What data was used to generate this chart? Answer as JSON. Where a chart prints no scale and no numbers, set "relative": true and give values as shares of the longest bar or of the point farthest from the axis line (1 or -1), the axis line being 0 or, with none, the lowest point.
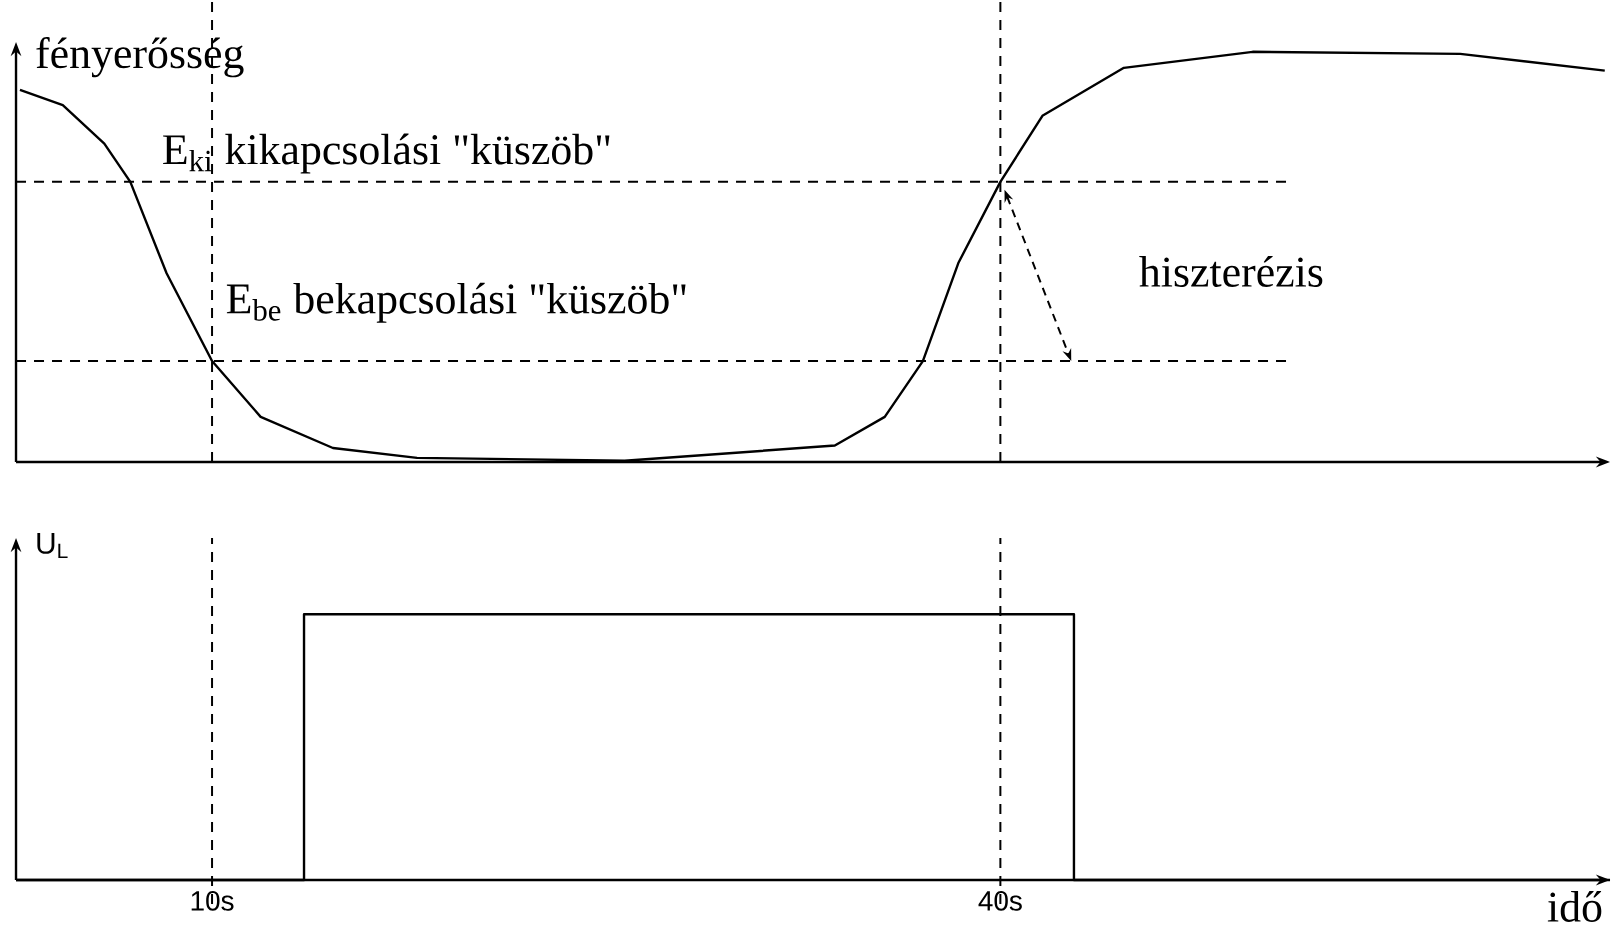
{
  "chart_data": [
    {
      "type": "line",
      "ylabel": "fényerősség",
      "relative": true,
      "xlim": [
        2.54,
        63.2
      ],
      "tick_labels": false,
      "x": [
        2.69,
        4.32,
        5.9,
        6.89,
        8.27,
        10,
        11.85,
        14.6,
        17.8,
        25.7,
        33.7,
        35.6,
        37.05,
        38.4,
        40,
        41.6,
        44.7,
        49.6,
        57.5,
        63.0
      ],
      "series": [
        {
          "color": "#000000",
          "values": [
            0.907,
            0.87,
            0.776,
            0.683,
            0.46,
            0.246,
            0.11,
            0.034,
            0.01,
            0.003,
            0.04,
            0.11,
            0.246,
            0.485,
            0.683,
            0.844,
            0.961,
            1.0,
            0.995,
            0.954
          ]
        }
      ],
      "ref_lines": [
        {
          "axis": "y",
          "value": 0.683,
          "label": "E$_{ki}$ kikapcsolási \"küszöb\"",
          "color": "#000000",
          "line_style": "dashed"
        },
        {
          "axis": "y",
          "value": 0.246,
          "label": "E$_{be}$ bekapcsolási \"küszöb\"",
          "color": "#000000",
          "line_style": "dashed"
        },
        {
          "axis": "x",
          "value": 10,
          "color": "#000000",
          "line_style": "dashed"
        },
        {
          "axis": "x",
          "value": 40,
          "color": "#000000",
          "line_style": "dashed"
        }
      ],
      "annotations": [
        "hiszterézis"
      ]
    },
    {
      "type": "step",
      "ylabel": "U$_{L}$",
      "xlabel": "idő",
      "relative": true,
      "xlim": [
        2.54,
        63.2
      ],
      "tick_labels": "x",
      "xticks": [
        {
          "value": 10,
          "label": "10s"
        },
        {
          "value": 40,
          "label": "40s"
        }
      ],
      "x": [
        2.54,
        13.5,
        42.8,
        63.2
      ],
      "series": [
        {
          "color": "#000000",
          "values": [
            0,
            1,
            0,
            0
          ]
        }
      ],
      "ref_lines": [
        {
          "axis": "x",
          "value": 10,
          "color": "#000000",
          "line_style": "dashed"
        },
        {
          "axis": "x",
          "value": 40,
          "color": "#000000",
          "line_style": "dashed"
        }
      ]
    }
  ]
}
